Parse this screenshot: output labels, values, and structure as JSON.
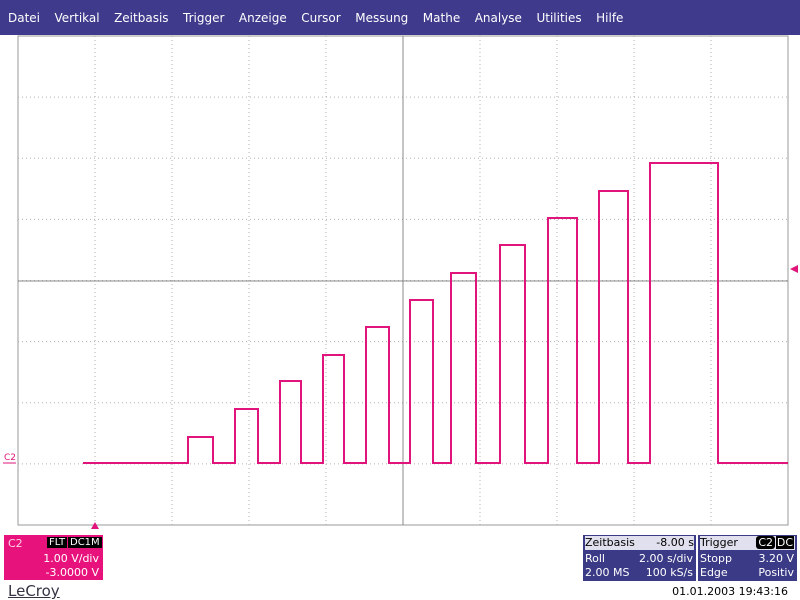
{
  "menu": [
    "Datei",
    "Vertikal",
    "Zeitbasis",
    "Trigger",
    "Anzeige",
    "Cursor",
    "Messung",
    "Mathe",
    "Analyse",
    "Utilities",
    "Hilfe"
  ],
  "trace_marker": "C2",
  "channel": {
    "label": "C2",
    "filter": "FLT",
    "coupling": "DC1M",
    "scale": "1.00 V/div",
    "offset": "-3.0000 V"
  },
  "timebase": {
    "title": "Zeitbasis",
    "delay": "-8.00 s",
    "rows": [
      [
        "Roll",
        "2.00 s/div"
      ],
      [
        "2.00 MS",
        "100 kS/s"
      ]
    ]
  },
  "trigger": {
    "title": "Trigger",
    "channel": "C2",
    "coupling": "DC",
    "rows": [
      [
        "Stopp",
        "3.20 V"
      ],
      [
        "Edge",
        "Positiv"
      ]
    ]
  },
  "brand": "LeCroy",
  "timestamp": "01.01.2003 19:43:16"
}
